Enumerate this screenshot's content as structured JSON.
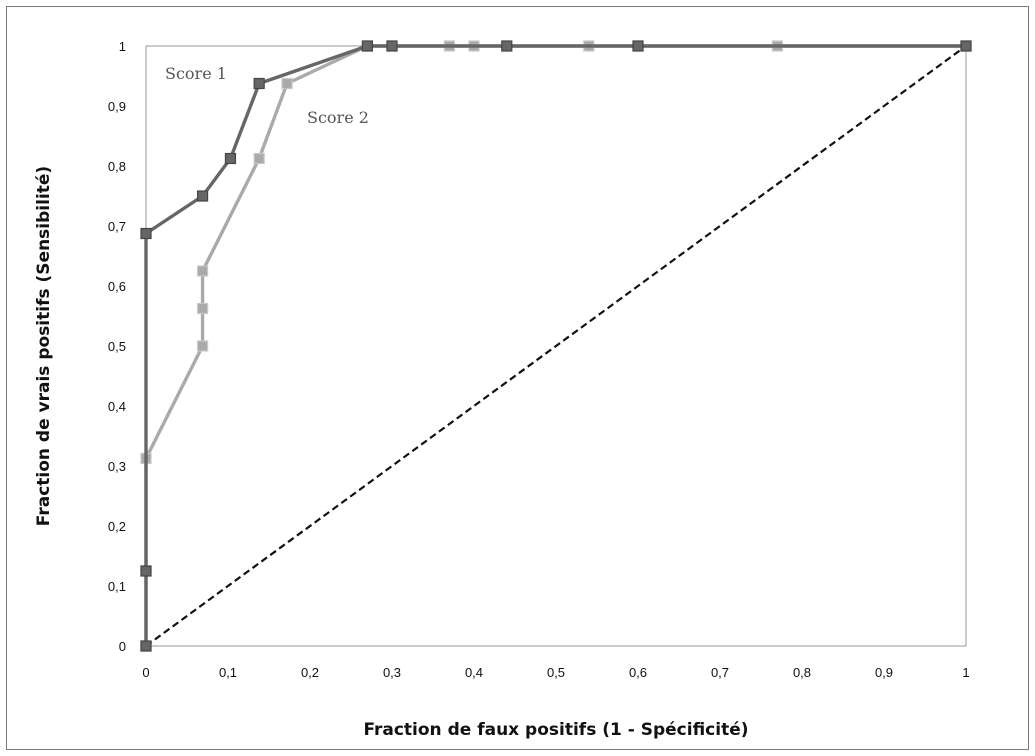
{
  "chart_data": {
    "type": "line",
    "xlabel": "Fraction de faux positifs (1 - Spécificité)",
    "ylabel": "Fraction de vrais positifs (Sensibilité)",
    "xlim": [
      0,
      1
    ],
    "ylim": [
      0,
      1
    ],
    "x_ticks": [
      "0",
      "0,1",
      "0,2",
      "0,3",
      "0,4",
      "0,5",
      "0,6",
      "0,7",
      "0,8",
      "0,9",
      "1"
    ],
    "y_ticks": [
      "0",
      "0,1",
      "0,2",
      "0,3",
      "0,4",
      "0,5",
      "0,6",
      "0,7",
      "0,8",
      "0,9",
      "1"
    ],
    "grid": false,
    "series": [
      {
        "name": "Score 1",
        "color": "#666666",
        "marker": "square",
        "points": [
          [
            0,
            0
          ],
          [
            0,
            0.125
          ],
          [
            0,
            0.6875
          ],
          [
            0.069,
            0.75
          ],
          [
            0.103,
            0.8125
          ],
          [
            0.138,
            0.9375
          ],
          [
            0.27,
            1
          ],
          [
            0.3,
            1
          ],
          [
            0.44,
            1
          ],
          [
            0.6,
            1
          ],
          [
            1,
            1
          ]
        ]
      },
      {
        "name": "Score 2",
        "color": "#aaaaaa",
        "marker": "square",
        "points": [
          [
            0,
            0
          ],
          [
            0,
            0.3125
          ],
          [
            0.069,
            0.5
          ],
          [
            0.069,
            0.5625
          ],
          [
            0.069,
            0.625
          ],
          [
            0.138,
            0.8125
          ],
          [
            0.172,
            0.9375
          ],
          [
            0.27,
            1
          ],
          [
            0.37,
            1
          ],
          [
            0.4,
            1
          ],
          [
            0.54,
            1
          ],
          [
            0.77,
            1
          ],
          [
            1,
            1
          ]
        ]
      },
      {
        "name": "",
        "color": "#111111",
        "style": "dashed",
        "points": [
          [
            0,
            0
          ],
          [
            1,
            1
          ]
        ]
      }
    ]
  }
}
